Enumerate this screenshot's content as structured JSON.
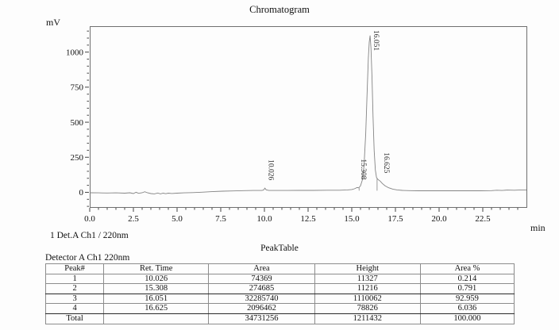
{
  "chart_data": {
    "type": "line",
    "title": "Chromatogram",
    "ylabel": "mV",
    "xlabel": "min",
    "xlim": [
      0,
      25
    ],
    "ylim": [
      -105,
      1185
    ],
    "grid": false,
    "legend": null,
    "x_major_ticks": [
      0,
      2.5,
      5,
      7.5,
      10,
      12.5,
      15,
      17.5,
      20,
      22.5
    ],
    "x_tick_labels": [
      "0.0",
      "2.5",
      "5.0",
      "7.5",
      "10.0",
      "12.5",
      "15.0",
      "17.5",
      "20.0",
      "22.5"
    ],
    "x_minor_step": 0.5,
    "x_minor_max": 24.5,
    "y_major_ticks": [
      0,
      250,
      500,
      750,
      1000
    ],
    "y_tick_labels": [
      "0",
      "250",
      "500",
      "750",
      "1000"
    ],
    "y_minor_step": 50,
    "peaks": [
      {
        "label": "10.026",
        "rt": 10.026,
        "apex_mv": 30
      },
      {
        "label": "15.308",
        "rt": 15.308,
        "apex_mv": 34
      },
      {
        "label": "16.051",
        "rt": 16.051,
        "apex_mv": 1118
      },
      {
        "label": "16.625",
        "rt": 16.625,
        "apex_mv": 80
      }
    ],
    "dividers": [
      {
        "t": 15.42,
        "mv_from": 12,
        "mv_to": 32
      },
      {
        "t": 16.45,
        "mv_from": 12,
        "mv_to": 96
      }
    ],
    "trace": [
      [
        0,
        -3
      ],
      [
        0.5,
        -4
      ],
      [
        1.0,
        -5
      ],
      [
        1.5,
        -4
      ],
      [
        2.0,
        -6
      ],
      [
        2.3,
        -3
      ],
      [
        2.5,
        -9
      ],
      [
        2.65,
        0
      ],
      [
        2.8,
        -7
      ],
      [
        3.0,
        -3
      ],
      [
        3.15,
        4
      ],
      [
        3.3,
        -3
      ],
      [
        3.5,
        -9
      ],
      [
        3.7,
        -11
      ],
      [
        3.9,
        -5
      ],
      [
        4.05,
        -11
      ],
      [
        4.2,
        -6
      ],
      [
        4.35,
        -10
      ],
      [
        4.5,
        -6
      ],
      [
        4.7,
        -8
      ],
      [
        5.0,
        -6
      ],
      [
        5.4,
        -4
      ],
      [
        5.9,
        -2
      ],
      [
        6.4,
        1
      ],
      [
        7.0,
        5
      ],
      [
        7.6,
        8
      ],
      [
        8.2,
        10
      ],
      [
        8.8,
        12
      ],
      [
        9.4,
        13
      ],
      [
        9.85,
        13
      ],
      [
        9.95,
        16
      ],
      [
        10.026,
        30
      ],
      [
        10.1,
        18
      ],
      [
        10.25,
        13
      ],
      [
        10.7,
        13
      ],
      [
        11.3,
        13
      ],
      [
        12.0,
        14
      ],
      [
        12.8,
        14
      ],
      [
        13.6,
        15
      ],
      [
        14.3,
        15
      ],
      [
        14.75,
        17
      ],
      [
        15.0,
        20
      ],
      [
        15.15,
        25
      ],
      [
        15.308,
        34
      ],
      [
        15.4,
        32
      ],
      [
        15.5,
        46
      ],
      [
        15.6,
        85
      ],
      [
        15.7,
        185
      ],
      [
        15.8,
        420
      ],
      [
        15.88,
        720
      ],
      [
        15.95,
        960
      ],
      [
        16.0,
        1070
      ],
      [
        16.051,
        1118
      ],
      [
        16.1,
        1030
      ],
      [
        16.16,
        820
      ],
      [
        16.22,
        540
      ],
      [
        16.28,
        300
      ],
      [
        16.35,
        160
      ],
      [
        16.42,
        105
      ],
      [
        16.5,
        92
      ],
      [
        16.625,
        80
      ],
      [
        16.75,
        63
      ],
      [
        16.9,
        47
      ],
      [
        17.1,
        33
      ],
      [
        17.35,
        23
      ],
      [
        17.6,
        17
      ],
      [
        17.9,
        14
      ],
      [
        18.3,
        12
      ],
      [
        18.8,
        11
      ],
      [
        19.5,
        11
      ],
      [
        20.5,
        11
      ],
      [
        21.5,
        11
      ],
      [
        22.4,
        11
      ],
      [
        23.0,
        12
      ],
      [
        23.3,
        15
      ],
      [
        23.6,
        13
      ],
      [
        23.9,
        16
      ],
      [
        24.3,
        15
      ],
      [
        24.7,
        17
      ],
      [
        25,
        17
      ]
    ]
  },
  "annotation_line": "1 Det.A Ch1 / 220nm",
  "peak_table": {
    "title": "PeakTable",
    "detector_label": "Detector A Ch1 220nm",
    "headers": [
      "Peak#",
      "Ret. Time",
      "Area",
      "Height",
      "Area %"
    ],
    "rows": [
      [
        "1",
        "10.026",
        "74369",
        "11327",
        "0.214"
      ],
      [
        "2",
        "15.308",
        "274685",
        "11216",
        "0.791"
      ],
      [
        "3",
        "16.051",
        "32285740",
        "1110062",
        "92.959"
      ],
      [
        "4",
        "16.625",
        "2096462",
        "78826",
        "6.036"
      ],
      [
        "Total",
        "",
        "34731256",
        "1211432",
        "100.000"
      ]
    ]
  },
  "colors": {
    "trace": "#848484",
    "axis": "#6f6f6f",
    "tick": "#444444",
    "text": "#111111",
    "peak_label": "#2a2a2a"
  }
}
